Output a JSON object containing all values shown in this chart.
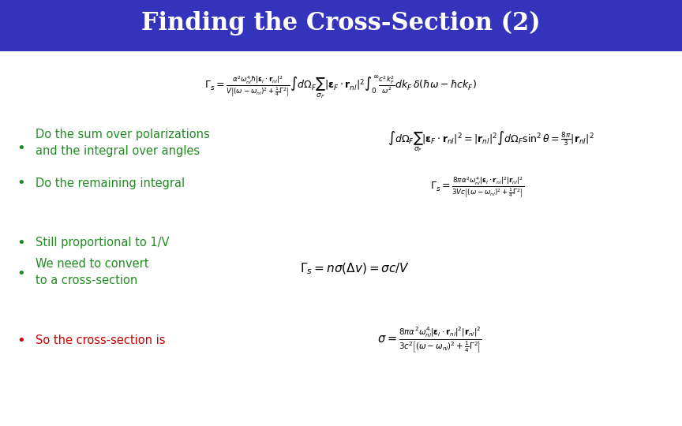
{
  "title": "Finding the Cross-Section (2)",
  "title_bg_color": "#3333BB",
  "title_text_color": "#FFFFFF",
  "bg_color": "#FFFFFF",
  "bullet_color_green": "#228B22",
  "bullet_color_red": "#CC0000",
  "bullet1": "Do the sum over polarizations\nand the integral over angles",
  "bullet2": "Do the remaining integral",
  "bullet3": "Still proportional to 1/V",
  "bullet4": "We need to convert\nto a cross-section",
  "bullet5": "So the cross-section is"
}
